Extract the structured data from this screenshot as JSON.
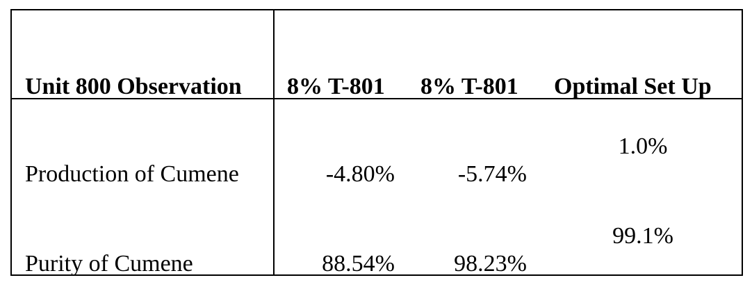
{
  "table": {
    "headers": [
      "Unit 800 Observation",
      "8% T-801",
      "8% T-801",
      "Optimal Set Up"
    ],
    "rows": [
      {
        "label": "Production of Cumene",
        "col1": "-4.80%",
        "col2": "-5.74%",
        "col3": "1.0%"
      },
      {
        "label": "Purity of Cumene",
        "col1": "88.54%",
        "col2": "98.23%",
        "col3": "99.1%"
      }
    ]
  }
}
